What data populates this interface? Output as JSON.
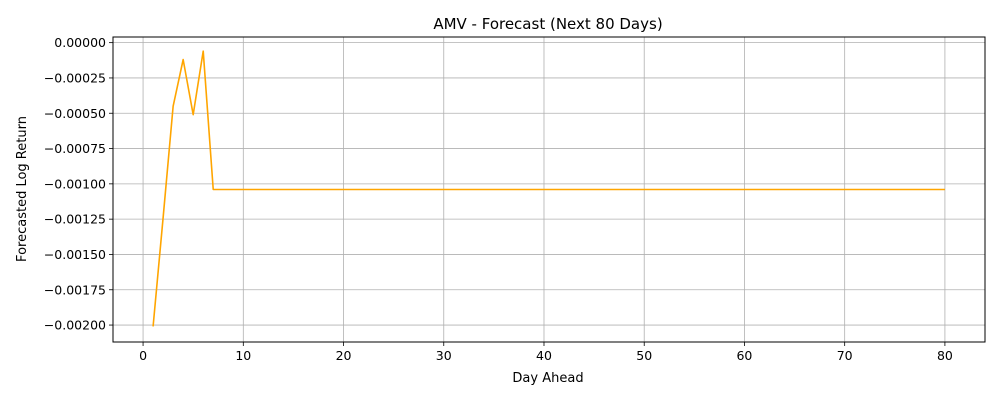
{
  "chart_data": {
    "type": "line",
    "title": "AMV - Forecast (Next 80 Days)",
    "xlabel": "Day Ahead",
    "ylabel": "Forecasted Log Return",
    "xlim": [
      -3,
      84
    ],
    "ylim": [
      -0.00212,
      4e-05
    ],
    "grid": true,
    "x_ticks": [
      0,
      10,
      20,
      30,
      40,
      50,
      60,
      70,
      80
    ],
    "x_tick_labels": [
      "0",
      "10",
      "20",
      "30",
      "40",
      "50",
      "60",
      "70",
      "80"
    ],
    "y_ticks": [
      0,
      -0.00025,
      -0.0005,
      -0.00075,
      -0.001,
      -0.00125,
      -0.0015,
      -0.00175,
      -0.002
    ],
    "y_tick_labels": [
      "0.00000",
      "−0.00025",
      "−0.00050",
      "−0.00075",
      "−0.00100",
      "−0.00125",
      "−0.00150",
      "−0.00175",
      "−0.00200"
    ],
    "series": [
      {
        "color": "#ffa500",
        "x": [
          1,
          2,
          3,
          4,
          5,
          6,
          7,
          80
        ],
        "y": [
          -0.00201,
          -0.00124,
          -0.00045,
          -0.00012,
          -0.00051,
          -6e-05,
          -0.00104,
          -0.00104
        ]
      }
    ]
  }
}
